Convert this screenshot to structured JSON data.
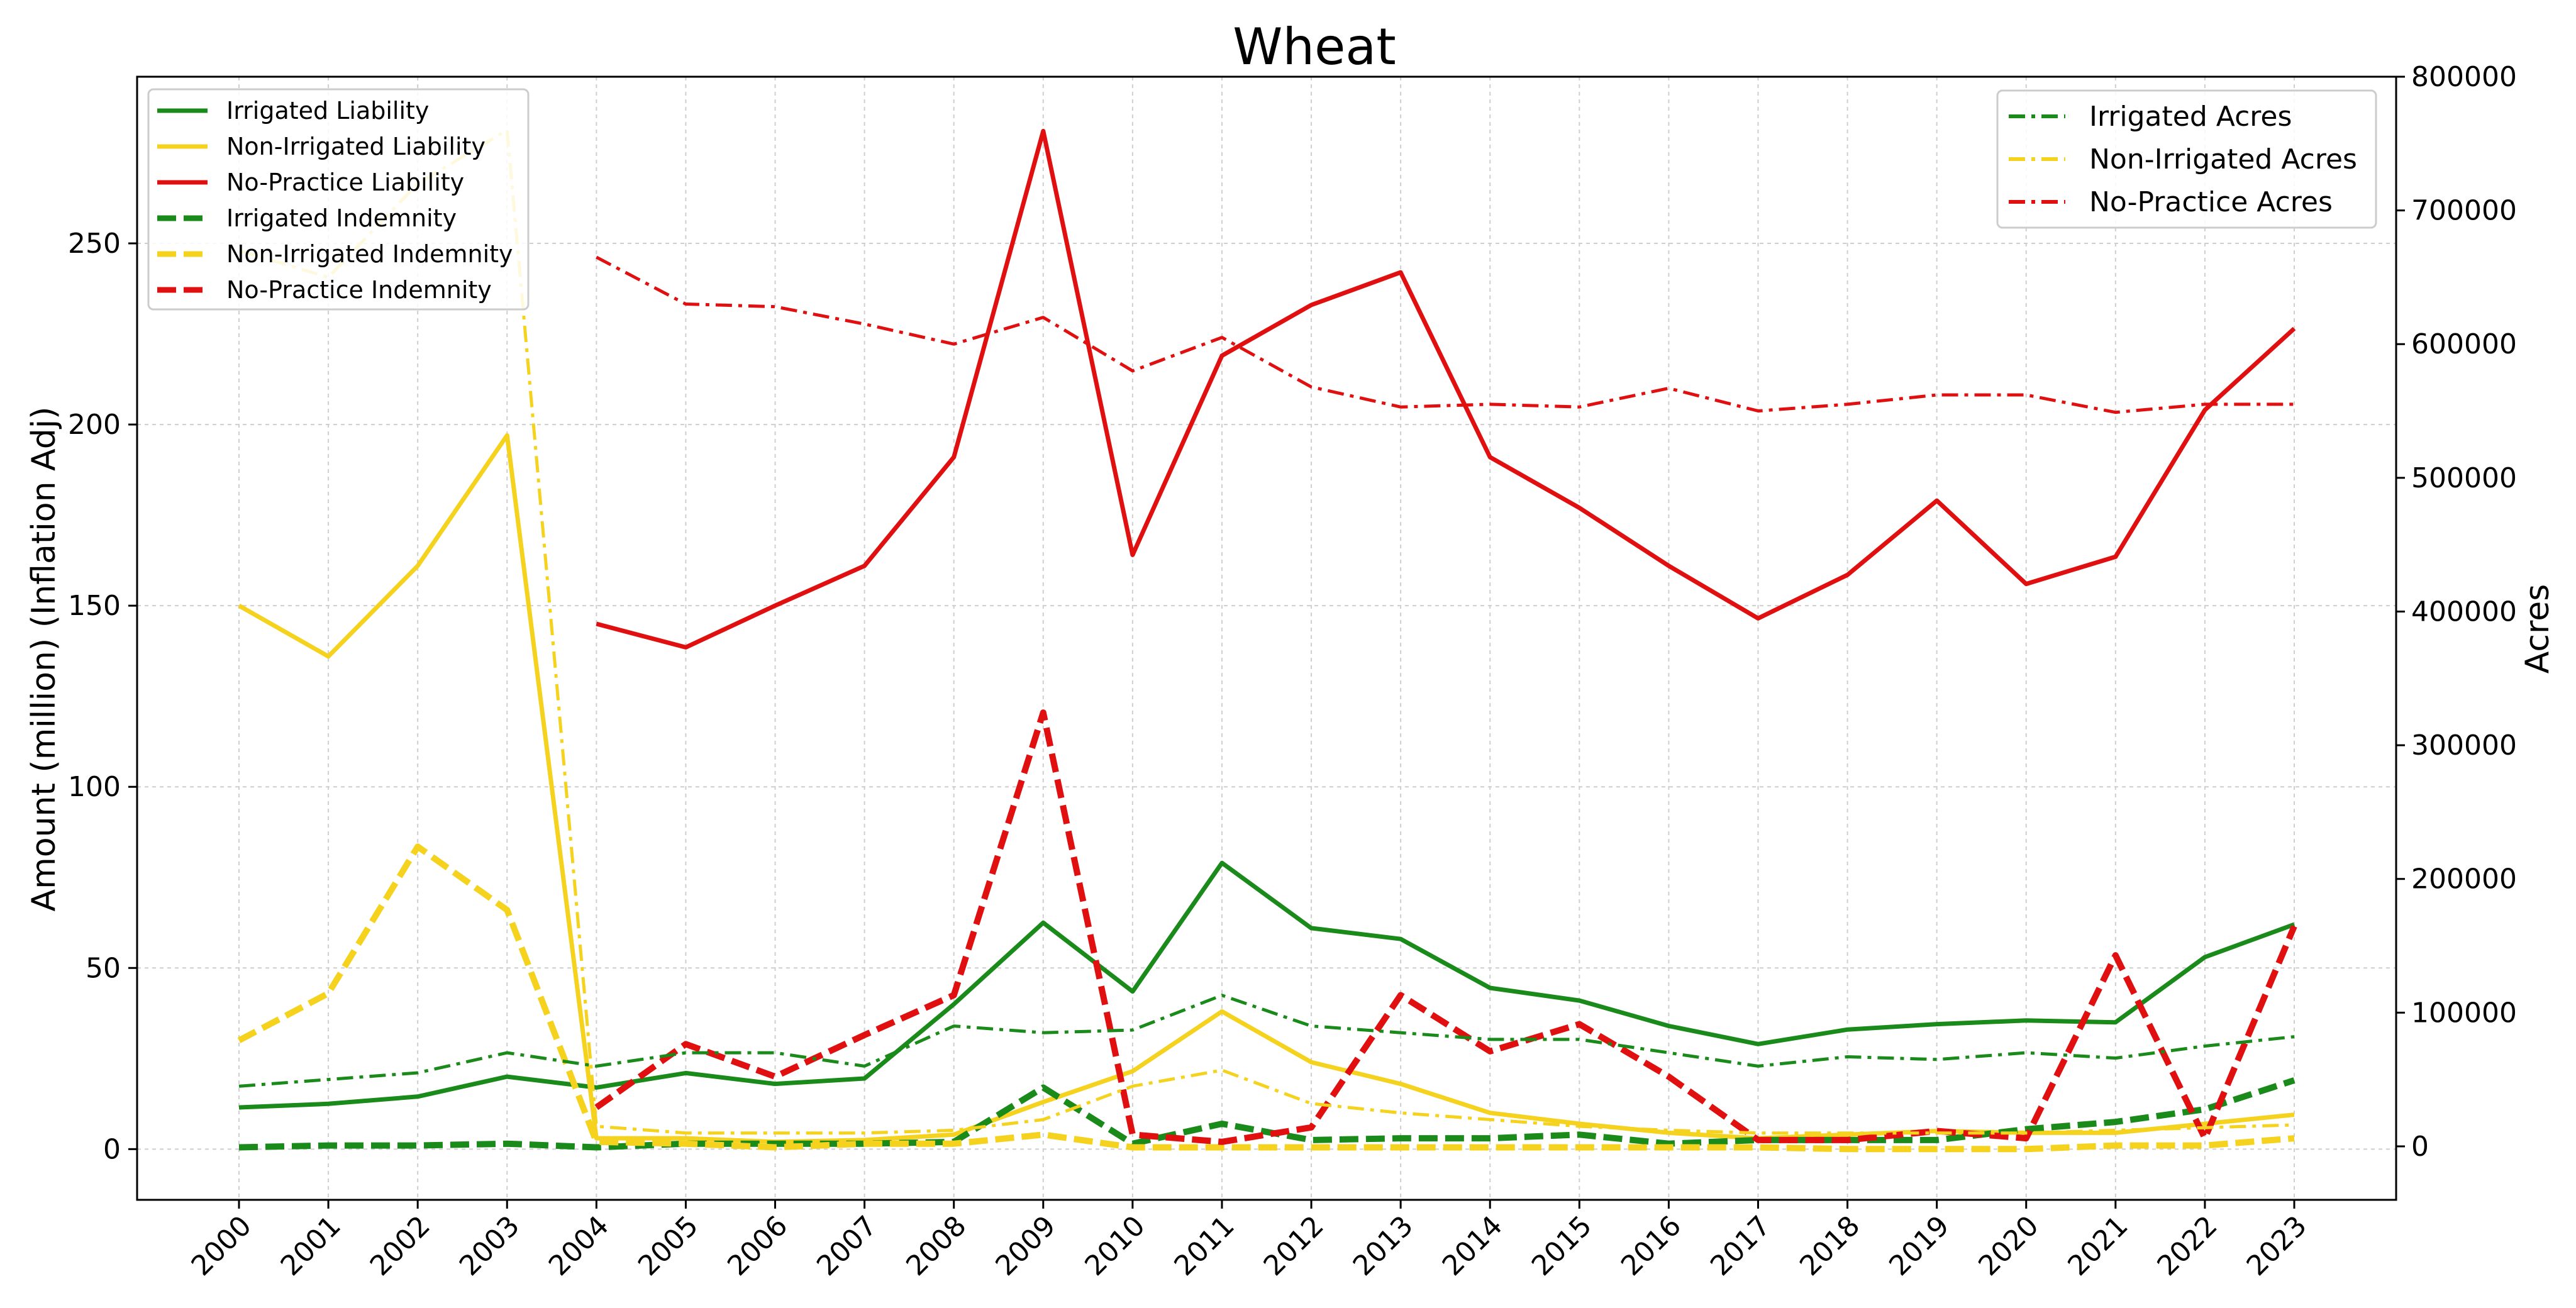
{
  "chart_data": {
    "type": "line",
    "title": "Wheat",
    "ylabel": "Amount (million) (Inflation Adj)",
    "y2label": "Acres",
    "xlabel": "",
    "grid": true,
    "x": [
      "2000",
      "2001",
      "2002",
      "2003",
      "2004",
      "2005",
      "2006",
      "2007",
      "2008",
      "2009",
      "2010",
      "2011",
      "2012",
      "2013",
      "2014",
      "2015",
      "2016",
      "2017",
      "2018",
      "2019",
      "2020",
      "2021",
      "2022",
      "2023"
    ],
    "ylim": [
      -14,
      296
    ],
    "y2lim": [
      -40000,
      800000
    ],
    "y_ticks": [
      0,
      50,
      100,
      150,
      200,
      250
    ],
    "y2_ticks": [
      0,
      100000,
      200000,
      300000,
      400000,
      500000,
      600000,
      700000,
      800000
    ],
    "legend_left": "upper-left",
    "legend_right": "upper-right",
    "series": [
      {
        "name": "Irrigated Liability",
        "axis": "left",
        "color": "#1a8a1a",
        "style": "solid",
        "values": [
          11.5,
          12.5,
          14.5,
          20,
          17,
          21,
          18,
          19.5,
          40,
          62.5,
          43.5,
          79,
          61,
          58,
          44.5,
          41,
          34,
          29,
          33,
          34.5,
          35.5,
          35,
          53,
          62
        ]
      },
      {
        "name": "Non-Irrigated Liability",
        "axis": "left",
        "color": "#f5d21e",
        "style": "solid",
        "values": [
          150,
          136,
          161,
          197,
          3,
          3,
          2,
          2.5,
          4,
          13,
          21.5,
          38,
          24,
          18,
          10,
          7,
          4.5,
          3,
          4,
          5,
          4.5,
          4.5,
          7,
          9.5
        ]
      },
      {
        "name": "No-Practice Liability",
        "axis": "left",
        "color": "#e01010",
        "style": "solid",
        "values": [
          null,
          null,
          null,
          null,
          145,
          138.5,
          150,
          161,
          191,
          281,
          164,
          219,
          233,
          242,
          191,
          177,
          161,
          146.5,
          158.5,
          179,
          156,
          163.5,
          204,
          226.5
        ]
      },
      {
        "name": "Irrigated Indemnity",
        "axis": "left",
        "color": "#1a8a1a",
        "style": "dashed",
        "values": [
          0.5,
          1,
          1,
          1.5,
          0.5,
          1.5,
          1.5,
          1.5,
          2,
          17,
          1.5,
          7,
          2.5,
          3,
          3,
          4,
          1.5,
          2.5,
          2.5,
          2.5,
          5.5,
          7.5,
          11,
          19
        ]
      },
      {
        "name": "Non-Irrigated Indemnity",
        "axis": "left",
        "color": "#f5d21e",
        "style": "dashed",
        "values": [
          30,
          43,
          83.5,
          66,
          2,
          1.5,
          0.5,
          1.5,
          1.5,
          4,
          0.5,
          0.5,
          0.5,
          0.5,
          0.5,
          0.5,
          0.5,
          0.5,
          0,
          0,
          0,
          1,
          1,
          3
        ]
      },
      {
        "name": "No-Practice Indemnity",
        "axis": "left",
        "color": "#e01010",
        "style": "dashed",
        "values": [
          null,
          null,
          null,
          null,
          11.5,
          29,
          20,
          31.5,
          42.5,
          120.5,
          4,
          2,
          6,
          42.5,
          27,
          34.5,
          20,
          2.5,
          2.5,
          5,
          3,
          53.5,
          3,
          61.5
        ]
      },
      {
        "name": "Irrigated Acres",
        "axis": "right",
        "color": "#1a8a1a",
        "style": "dashdot",
        "values": [
          45000,
          50000,
          55000,
          70000,
          60000,
          70000,
          70000,
          60000,
          90000,
          85000,
          87000,
          113000,
          90000,
          85000,
          80000,
          80000,
          70000,
          60000,
          67000,
          65000,
          70000,
          66000,
          75000,
          82000
        ]
      },
      {
        "name": "Non-Irrigated Acres",
        "axis": "right",
        "color": "#f5d21e",
        "style": "dashdot",
        "values": [
          670000,
          650000,
          720000,
          760000,
          15000,
          10000,
          10000,
          10000,
          12000,
          20000,
          45000,
          57000,
          32000,
          25000,
          20000,
          15000,
          12000,
          10000,
          10000,
          10000,
          10000,
          12000,
          14000,
          16000
        ]
      },
      {
        "name": "No-Practice Acres",
        "axis": "right",
        "color": "#e01010",
        "style": "dashdot",
        "values": [
          null,
          null,
          null,
          null,
          665000,
          630000,
          628000,
          615000,
          600000,
          620000,
          580000,
          605000,
          568000,
          553000,
          555000,
          553000,
          567000,
          550000,
          555000,
          562000,
          562000,
          549000,
          555000,
          555000
        ]
      }
    ]
  }
}
